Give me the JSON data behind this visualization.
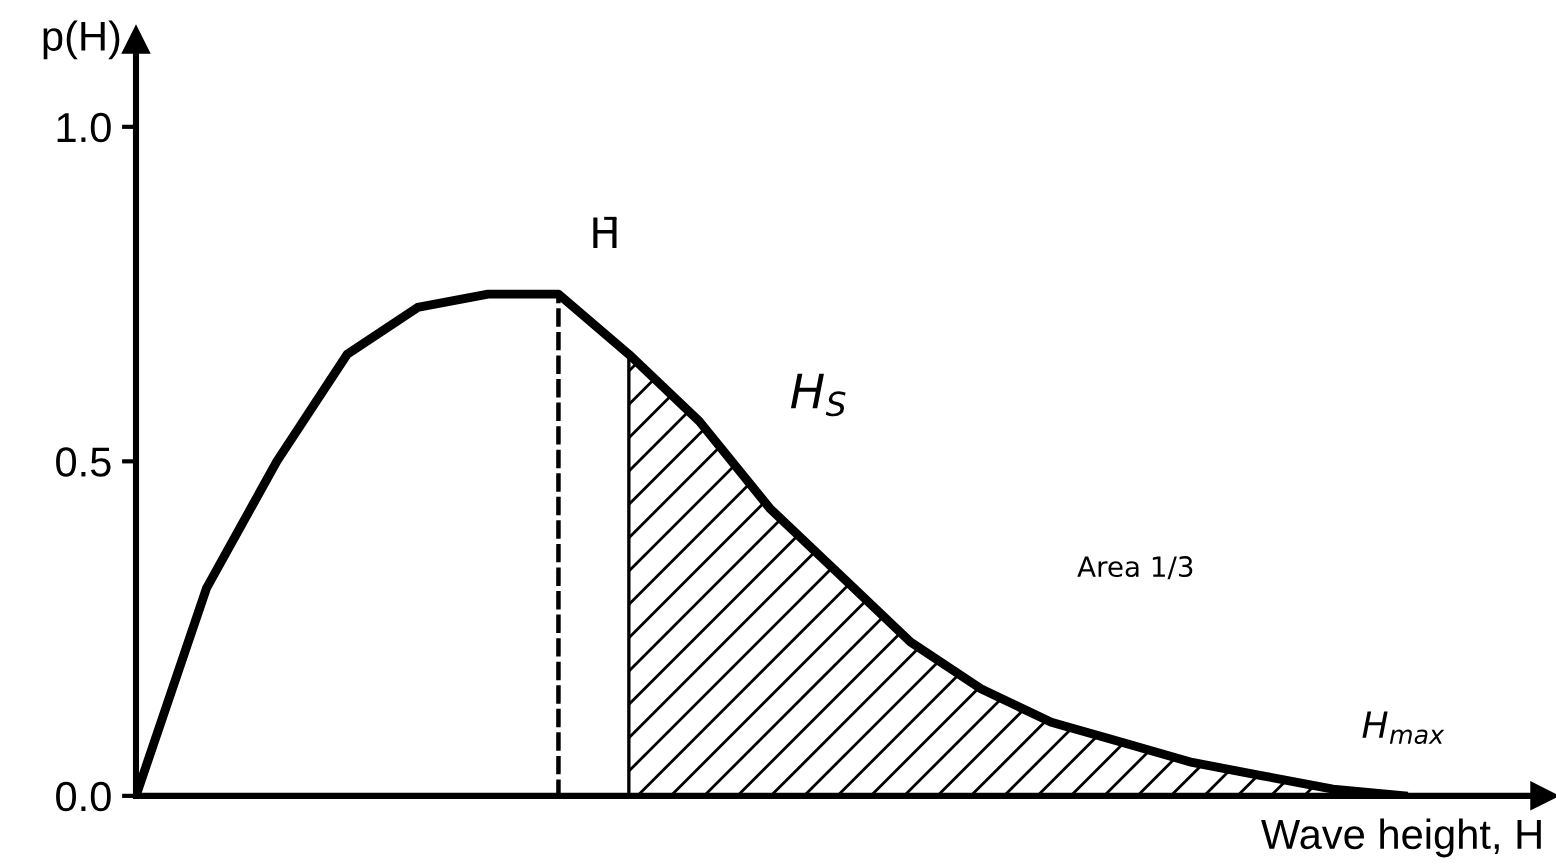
{
  "chart_data": {
    "type": "line",
    "xlabel": "Wave height, H",
    "ylabel": "p(H)",
    "categories": [
      null,
      null,
      null,
      null,
      null,
      null,
      null,
      null,
      null,
      null,
      null,
      null,
      null,
      null,
      null,
      null,
      null,
      null,
      null,
      null,
      null
    ],
    "series": [
      {
        "color": "#000000",
        "values": [
          0,
          0.31,
          0.5,
          0.66,
          0.73,
          0.75,
          0.75,
          0.66,
          0.56,
          0.43,
          0.33,
          0.23,
          0.16,
          0.11,
          0.08,
          0.05,
          0.03,
          0.01,
          0.0,
          null,
          null
        ]
      },
      {
        "type": "area",
        "color": "#000000",
        "values": [
          null,
          null,
          null,
          null,
          null,
          null,
          null,
          0.66,
          0.56,
          0.43,
          0.33,
          0.23,
          0.16,
          0.11,
          0.08,
          0.05,
          0.03,
          0.01,
          0.0,
          null,
          null
        ]
      },
      {
        "type": "bar",
        "color": "#000000",
        "line_style": "dashed",
        "values": [
          null,
          null,
          null,
          null,
          null,
          null,
          0.75,
          null,
          null,
          null,
          null,
          null,
          null,
          null,
          null,
          null,
          null,
          null,
          null,
          null,
          null
        ]
      }
    ],
    "annotations": [
      "H̄",
      "H$_{S}$",
      "Area 1/3",
      "H$_{max}$"
    ],
    "ylim": [
      0,
      1.13
    ],
    "yticks": [
      {
        "value": 0,
        "label": "0.0"
      },
      {
        "value": 0.5,
        "label": "0.5"
      },
      {
        "value": 1,
        "label": "1.0"
      }
    ],
    "grid": false,
    "legend": false
  }
}
